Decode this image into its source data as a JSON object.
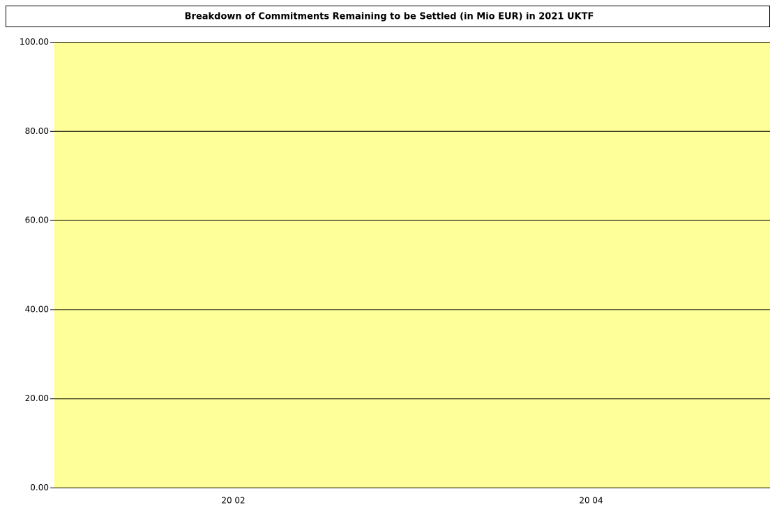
{
  "chart_data": {
    "type": "bar",
    "title": "Breakdown of Commitments Remaining to be Settled (in Mio EUR) in 2021 UKTF",
    "categories": [
      "20 02",
      "20 04"
    ],
    "values": [
      0,
      0
    ],
    "color": "#3366cc",
    "background": "#ffff99",
    "ylim": [
      0,
      100
    ],
    "yticks": [
      {
        "value": 0,
        "label": "0.00"
      },
      {
        "value": 20,
        "label": "20.00"
      },
      {
        "value": 40,
        "label": "40.00"
      },
      {
        "value": 60,
        "label": "60.00"
      },
      {
        "value": 80,
        "label": "80.00"
      },
      {
        "value": 100,
        "label": "100.00"
      }
    ],
    "grid": true
  }
}
